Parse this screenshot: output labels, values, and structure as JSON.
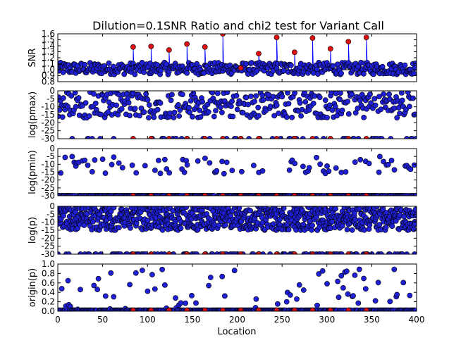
{
  "figure": {
    "title": "Dilution=0.1SNR Ratio and chi2 test for Variant Call",
    "xlabel": "Location",
    "x_ticks": [
      "0",
      "50",
      "100",
      "150",
      "200",
      "250",
      "300",
      "350",
      "400"
    ]
  },
  "colors": {
    "marker_fill": "#1f1fd6",
    "marker_edge": "#000000",
    "variant_fill": "#dd1111",
    "line": "#0000ff",
    "axes": "#000000",
    "background": "#ffffff"
  },
  "chart_data": [
    {
      "type": "scatter",
      "panel": "snr",
      "ylabel": "SNR",
      "xlim": [
        0,
        400
      ],
      "ylim": [
        0.8,
        1.6
      ],
      "y_ticks": [
        "0.8",
        "0.9",
        "1.0",
        "1.1",
        "1.2",
        "1.3",
        "1.4",
        "1.5",
        "1.6"
      ],
      "has_line": true,
      "baseline": 1.0,
      "n_background_points": 400,
      "background_y_range": [
        0.92,
        1.12
      ],
      "variants": [
        {
          "x": 84,
          "y": 1.38
        },
        {
          "x": 104,
          "y": 1.39
        },
        {
          "x": 124,
          "y": 1.33
        },
        {
          "x": 144,
          "y": 1.43
        },
        {
          "x": 164,
          "y": 1.38
        },
        {
          "x": 184,
          "y": 1.6
        },
        {
          "x": 204,
          "y": 1.03
        },
        {
          "x": 224,
          "y": 1.27
        },
        {
          "x": 244,
          "y": 1.54
        },
        {
          "x": 264,
          "y": 1.29
        },
        {
          "x": 284,
          "y": 1.53
        },
        {
          "x": 304,
          "y": 1.35
        },
        {
          "x": 324,
          "y": 1.47
        },
        {
          "x": 344,
          "y": 1.54
        }
      ]
    },
    {
      "type": "scatter",
      "panel": "log_pmax",
      "ylabel": "log(pmax)",
      "xlim": [
        0,
        400
      ],
      "ylim": [
        -30,
        0
      ],
      "y_ticks": [
        "0",
        "-5",
        "-10",
        "-15",
        "-20",
        "-25",
        "-30"
      ],
      "n_points": 400,
      "floor_value": -30,
      "floor_fraction": 0.12,
      "spread_range": [
        -17,
        -0.5
      ]
    },
    {
      "type": "scatter",
      "panel": "log_pmin",
      "ylabel": "log(pmin)",
      "xlim": [
        0,
        400
      ],
      "ylim": [
        -30,
        0
      ],
      "y_ticks": [
        "0",
        "-5",
        "-10",
        "-15",
        "-20",
        "-25",
        "-30"
      ],
      "n_points": 400,
      "floor_value": -30,
      "floor_fraction": 0.82,
      "spread_range": [
        -16,
        -5
      ]
    },
    {
      "type": "scatter",
      "panel": "log_p",
      "ylabel": "log(p)",
      "xlim": [
        0,
        400
      ],
      "ylim": [
        -30,
        0
      ],
      "y_ticks": [
        "0",
        "-5",
        "-10",
        "-15",
        "-20",
        "-25",
        "-30"
      ],
      "n_points": 900,
      "floor_value": -30,
      "floor_fraction": 0.12,
      "spread_range": [
        -15,
        0
      ]
    },
    {
      "type": "scatter",
      "panel": "origin_p",
      "ylabel": "origin(p)",
      "xlim": [
        0,
        400
      ],
      "ylim": [
        0.0,
        1.0
      ],
      "y_ticks": [
        "0.0",
        "0.2",
        "0.4",
        "0.6",
        "0.8",
        "1.0"
      ],
      "n_points": 400,
      "floor_value": 0.02,
      "floor_fraction": 0.82,
      "spread_range": [
        0.03,
        0.9
      ]
    }
  ]
}
